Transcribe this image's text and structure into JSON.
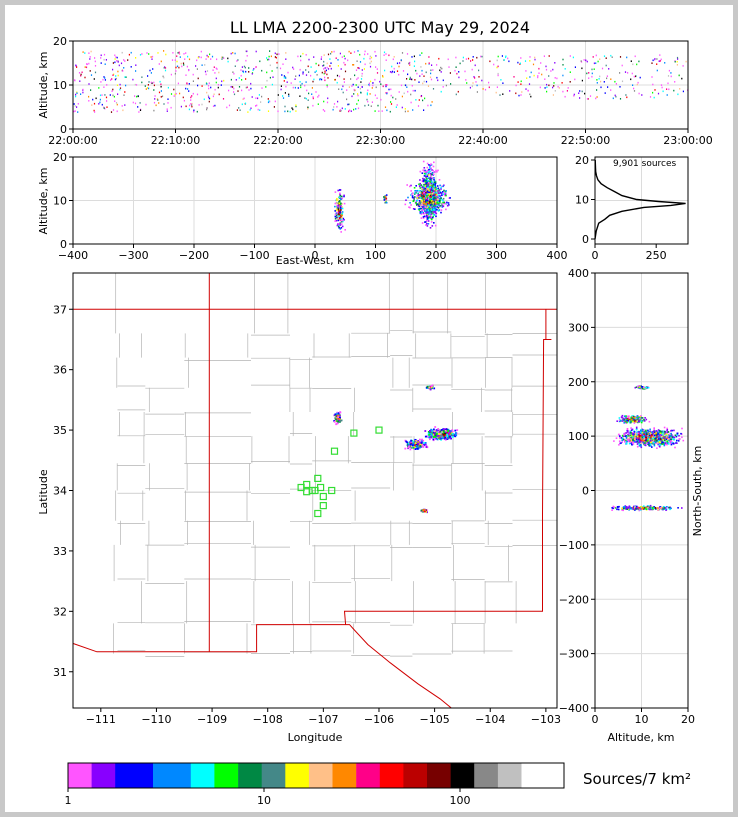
{
  "chart_data": [
    {
      "id": "time-altitude",
      "type": "scatter",
      "title": "LL LMA 2200-2300 UTC May 29, 2024",
      "ylabel": "Altitude, km",
      "xlim": [
        "22:00:00",
        "23:00:00"
      ],
      "ylim": [
        0,
        20
      ],
      "x_ticks": [
        "22:00:00",
        "22:10:00",
        "22:20:00",
        "22:30:00",
        "22:40:00",
        "22:50:00",
        "23:00:00"
      ],
      "y_ticks": [
        "0",
        "10",
        "20"
      ],
      "clusters": [
        {
          "t0": 0,
          "t1": 35,
          "alt0": 4,
          "alt1": 18,
          "density": 0.9
        },
        {
          "t0": 35,
          "t1": 60,
          "alt0": 7,
          "alt1": 17,
          "density": 0.45
        }
      ]
    },
    {
      "id": "ew-altitude",
      "type": "scatter",
      "xlabel": "East-West, km",
      "ylabel": "Altitude, km",
      "xlim": [
        -400,
        400
      ],
      "ylim": [
        0,
        20
      ],
      "x_ticks": [
        "−400",
        "−300",
        "−200",
        "−100",
        "0",
        "100",
        "200",
        "300",
        "400"
      ],
      "y_ticks": [
        "0",
        "10",
        "20"
      ],
      "clusters": [
        {
          "x0": 170,
          "x1": 205,
          "alt0": 3,
          "alt1": 20,
          "n": 700
        },
        {
          "x0": 145,
          "x1": 230,
          "alt0": 6,
          "alt1": 16,
          "n": 500
        },
        {
          "x0": 28,
          "x1": 50,
          "alt0": 2,
          "alt1": 14,
          "n": 140
        },
        {
          "x0": 110,
          "x1": 120,
          "alt0": 9,
          "alt1": 12,
          "n": 20
        }
      ]
    },
    {
      "id": "altitude-histogram",
      "type": "line",
      "annotation": "9,901 sources",
      "xlim": [
        0,
        380
      ],
      "ylim": [
        0,
        20
      ],
      "x_ticks": [
        "0",
        "250"
      ],
      "y_ticks": [
        "0",
        "10",
        "20"
      ],
      "profile": [
        {
          "alt": 0,
          "count": 0
        },
        {
          "alt": 2,
          "count": 5
        },
        {
          "alt": 4,
          "count": 15
        },
        {
          "alt": 5,
          "count": 40
        },
        {
          "alt": 6,
          "count": 60
        },
        {
          "alt": 7,
          "count": 110
        },
        {
          "alt": 8,
          "count": 200
        },
        {
          "alt": 8.5,
          "count": 310
        },
        {
          "alt": 9,
          "count": 370
        },
        {
          "alt": 9.5,
          "count": 260
        },
        {
          "alt": 10,
          "count": 170
        },
        {
          "alt": 11,
          "count": 110
        },
        {
          "alt": 12,
          "count": 80
        },
        {
          "alt": 13,
          "count": 50
        },
        {
          "alt": 14,
          "count": 25
        },
        {
          "alt": 15,
          "count": 12
        },
        {
          "alt": 16,
          "count": 6
        },
        {
          "alt": 17,
          "count": 3
        },
        {
          "alt": 18,
          "count": 2
        },
        {
          "alt": 20,
          "count": 1
        }
      ]
    },
    {
      "id": "plan-view",
      "type": "scatter",
      "xlabel": "Longitude",
      "ylabel": "Latitude",
      "xlim": [
        -111.5,
        -102.8
      ],
      "ylim": [
        30.4,
        37.6
      ],
      "x_ticks": [
        "−111",
        "−110",
        "−109",
        "−108",
        "−107",
        "−106",
        "−105",
        "−104",
        "−103"
      ],
      "y_ticks": [
        "31",
        "32",
        "33",
        "34",
        "35",
        "36",
        "37"
      ],
      "clusters": [
        {
          "lon": -104.9,
          "lat": 34.95,
          "dlon": 0.35,
          "dlat": 0.12,
          "n": 420
        },
        {
          "lon": -105.35,
          "lat": 34.78,
          "dlon": 0.25,
          "dlat": 0.1,
          "n": 200
        },
        {
          "lon": -106.75,
          "lat": 35.2,
          "dlon": 0.1,
          "dlat": 0.12,
          "n": 90
        },
        {
          "lon": -105.1,
          "lat": 35.72,
          "dlon": 0.1,
          "dlat": 0.04,
          "n": 30
        },
        {
          "lon": -105.2,
          "lat": 33.68,
          "dlon": 0.1,
          "dlat": 0.04,
          "n": 30
        }
      ],
      "stations": [
        {
          "lon": -107.4,
          "lat": 34.05
        },
        {
          "lon": -107.3,
          "lat": 34.1
        },
        {
          "lon": -107.2,
          "lat": 34.0
        },
        {
          "lon": -107.1,
          "lat": 34.2
        },
        {
          "lon": -107.05,
          "lat": 34.05
        },
        {
          "lon": -107.0,
          "lat": 33.9
        },
        {
          "lon": -107.0,
          "lat": 33.75
        },
        {
          "lon": -107.1,
          "lat": 33.62
        },
        {
          "lon": -106.85,
          "lat": 34.0
        },
        {
          "lon": -107.3,
          "lat": 33.98
        },
        {
          "lon": -106.8,
          "lat": 34.65
        },
        {
          "lon": -106.45,
          "lat": 34.95
        },
        {
          "lon": -106.0,
          "lat": 35.0
        },
        {
          "lon": -107.15,
          "lat": 34.0
        }
      ]
    },
    {
      "id": "ns-altitude",
      "type": "scatter",
      "xlabel": "Altitude, km",
      "ylabel": "North-South, km",
      "xlim": [
        0,
        20
      ],
      "ylim": [
        -400,
        400
      ],
      "x_ticks": [
        "0",
        "10",
        "20"
      ],
      "y_ticks": [
        "−400",
        "−300",
        "−200",
        "−100",
        "0",
        "100",
        "200",
        "300",
        "400"
      ],
      "clusters": [
        {
          "alt0": 3,
          "alt1": 20,
          "ns0": 78,
          "ns1": 120,
          "n": 900
        },
        {
          "alt0": 4,
          "alt1": 12,
          "ns0": 122,
          "ns1": 142,
          "n": 200
        },
        {
          "alt0": 8,
          "alt1": 12,
          "ns0": 187,
          "ns1": 195,
          "n": 50
        },
        {
          "alt0": 1,
          "alt1": 20,
          "ns0": -36,
          "ns1": -26,
          "n": 250
        }
      ]
    },
    {
      "id": "colorbar",
      "type": "heatmap",
      "label": "Sources/7 km²",
      "ticks": [
        "1",
        "10",
        "100"
      ],
      "colors": [
        "#ff55ff",
        "#8800ff",
        "#0000ff",
        "#0088ff",
        "#00ffff",
        "#00ff00",
        "#008844",
        "#448888",
        "#ffff00",
        "#ffc088",
        "#ff8800",
        "#ff0088",
        "#ff0000",
        "#bb0000",
        "#770000",
        "#000000",
        "#888888",
        "#c0c0c0",
        "#ffffff"
      ]
    }
  ]
}
